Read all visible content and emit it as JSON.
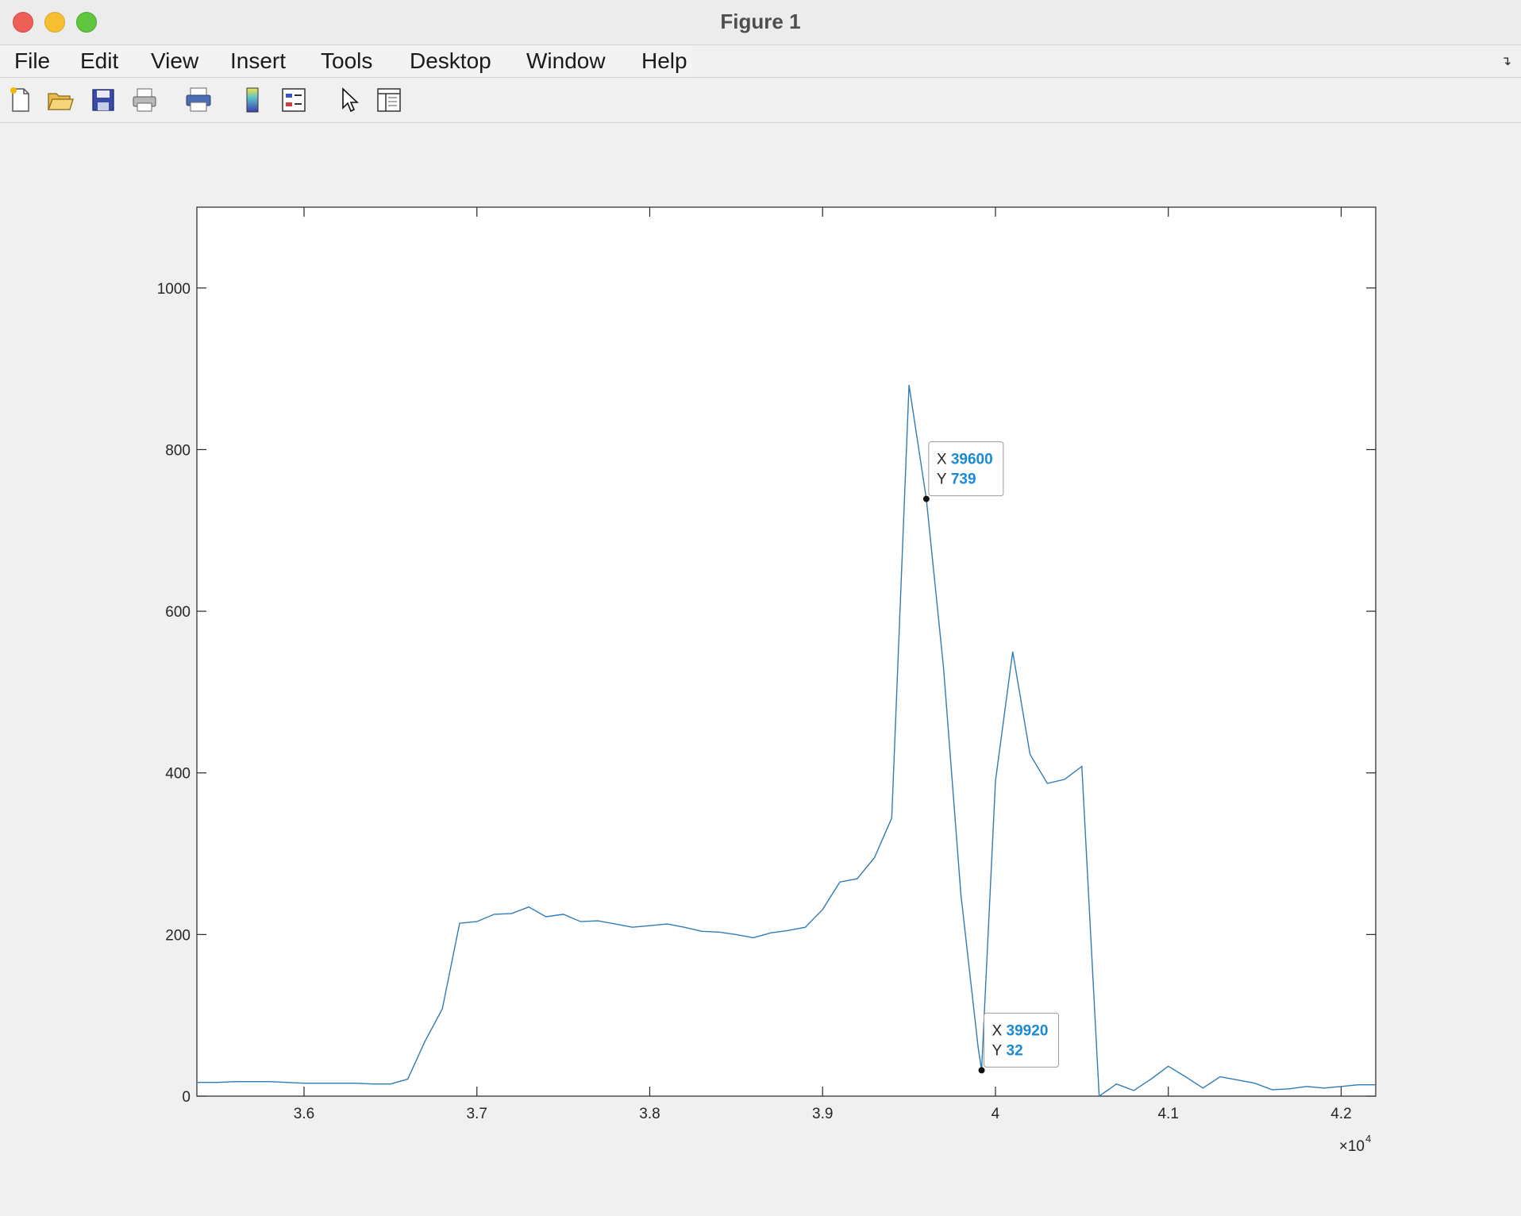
{
  "window": {
    "title": "Figure 1"
  },
  "menubar": {
    "items": [
      "File",
      "Edit",
      "View",
      "Insert",
      "Tools",
      "Desktop",
      "Window",
      "Help"
    ]
  },
  "toolbar": {
    "icons": [
      "new-figure-icon",
      "open-file-icon",
      "save-icon",
      "print-icon",
      "print-preview-icon",
      "colorbar-icon",
      "legend-icon",
      "pointer-icon",
      "property-inspector-icon"
    ]
  },
  "chart_data": {
    "type": "line",
    "title": "",
    "xlabel": "",
    "ylabel": "",
    "x_exponent_label": "×10",
    "x_exponent_power": "4",
    "xlim": [
      35380,
      42200
    ],
    "ylim": [
      0,
      1100
    ],
    "xticks": [
      36000,
      37000,
      38000,
      39000,
      40000,
      41000,
      42000
    ],
    "xtick_labels": [
      "3.6",
      "3.7",
      "3.8",
      "3.9",
      "4",
      "4.1",
      "4.2"
    ],
    "yticks": [
      0,
      200,
      400,
      600,
      800,
      1000
    ],
    "ytick_labels": [
      "0",
      "200",
      "400",
      "600",
      "800",
      "1000"
    ],
    "line_color": "#2f7bb5",
    "grid": false,
    "series": [
      {
        "x": [
          35380,
          35500,
          35600,
          35700,
          35800,
          35900,
          36000,
          36100,
          36200,
          36300,
          36400,
          36500,
          36600,
          36700,
          36800,
          36900,
          37000,
          37100,
          37200,
          37300,
          37400,
          37500,
          37600,
          37700,
          37800,
          37900,
          38000,
          38100,
          38200,
          38300,
          38400,
          38500,
          38600,
          38700,
          38800,
          38900,
          39000,
          39100,
          39200,
          39300,
          39400,
          39500,
          39600,
          39700,
          39800,
          39900,
          39920,
          40000,
          40100,
          40200,
          40300,
          40400,
          40500,
          40600,
          40700,
          40800,
          40900,
          41000,
          41100,
          41200,
          41300,
          41400,
          41500,
          41600,
          41700,
          41800,
          41900,
          42000,
          42100,
          42200
        ],
        "y": [
          17,
          17,
          18,
          18,
          18,
          17,
          16,
          16,
          16,
          16,
          15,
          15,
          21,
          68,
          108,
          214,
          216,
          225,
          226,
          234,
          222,
          225,
          216,
          217,
          213,
          209,
          211,
          213,
          209,
          204,
          203,
          200,
          196,
          202,
          205,
          209,
          231,
          265,
          269,
          295,
          344,
          880,
          739,
          530,
          250,
          60,
          32,
          390,
          550,
          423,
          387,
          392,
          408,
          0,
          15,
          7,
          21,
          37,
          24,
          10,
          24,
          20,
          16,
          8,
          9,
          12,
          10,
          12,
          14,
          14
        ]
      }
    ],
    "datatips": [
      {
        "x_label": "X",
        "x_value": "39600",
        "y_label": "Y",
        "y_value": "739",
        "x": 39600,
        "y": 739
      },
      {
        "x_label": "X",
        "x_value": "39920",
        "y_label": "Y",
        "y_value": "32",
        "x": 39920,
        "y": 32
      }
    ]
  }
}
